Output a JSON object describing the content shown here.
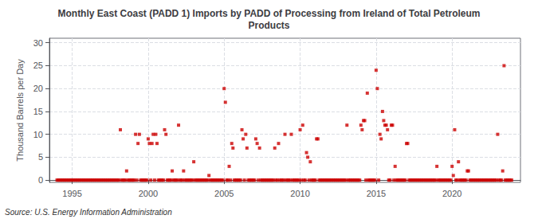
{
  "chart_data": {
    "type": "scatter",
    "title": "Monthly East Coast (PADD 1) Imports by PADD of Processing from Ireland of Total Petroleum\nProducts",
    "y_label": "Thousand Barrels per Day",
    "annotations": [
      "Source: U.S. Energy Information Administration"
    ],
    "color": "#cc0000",
    "marker": "square",
    "grid": true,
    "xlim": [
      1993.5,
      2024.5
    ],
    "ylim": [
      -0.5,
      31
    ],
    "xticks": [
      1995,
      2000,
      2005,
      2010,
      2015,
      2020
    ],
    "yticks": [
      0,
      5,
      10,
      15,
      20,
      25,
      30
    ],
    "x": [
      1994.0,
      1994.08,
      1994.17,
      1994.25,
      1994.33,
      1994.42,
      1994.5,
      1994.58,
      1994.67,
      1994.75,
      1994.83,
      1994.92,
      1995.0,
      1995.08,
      1995.17,
      1995.25,
      1995.33,
      1995.42,
      1995.5,
      1995.58,
      1995.67,
      1995.75,
      1995.83,
      1995.92,
      1996.0,
      1996.08,
      1996.17,
      1996.25,
      1996.33,
      1996.42,
      1996.5,
      1996.58,
      1996.67,
      1996.75,
      1996.83,
      1996.92,
      1997.0,
      1997.08,
      1997.17,
      1997.25,
      1997.33,
      1997.42,
      1997.5,
      1997.58,
      1997.67,
      1997.75,
      1997.83,
      1997.92,
      1998.0,
      1998.08,
      1998.17,
      1998.25,
      1998.33,
      1998.42,
      1998.5,
      1998.58,
      1998.67,
      1998.75,
      1998.83,
      1998.92,
      1999.0,
      1999.08,
      1999.17,
      1999.25,
      1999.33,
      1999.42,
      1999.5,
      1999.58,
      1999.67,
      1999.75,
      1999.83,
      1999.92,
      2000.0,
      2000.08,
      2000.17,
      2000.25,
      2000.33,
      2000.42,
      2000.5,
      2000.58,
      2000.67,
      2000.75,
      2000.83,
      2000.92,
      2001.0,
      2001.08,
      2001.17,
      2001.25,
      2001.33,
      2001.42,
      2001.5,
      2001.58,
      2001.67,
      2001.75,
      2001.83,
      2001.92,
      2002.0,
      2002.08,
      2002.17,
      2002.25,
      2002.33,
      2002.42,
      2002.5,
      2002.58,
      2002.67,
      2002.75,
      2002.83,
      2002.92,
      2003.0,
      2003.08,
      2003.17,
      2003.25,
      2003.33,
      2003.42,
      2003.5,
      2003.58,
      2003.67,
      2003.75,
      2003.83,
      2003.92,
      2004.0,
      2004.08,
      2004.17,
      2004.25,
      2004.33,
      2004.42,
      2004.5,
      2004.58,
      2004.67,
      2004.75,
      2004.83,
      2004.92,
      2005.0,
      2005.08,
      2005.17,
      2005.25,
      2005.33,
      2005.42,
      2005.5,
      2005.58,
      2005.67,
      2005.75,
      2005.83,
      2005.92,
      2006.0,
      2006.08,
      2006.17,
      2006.25,
      2006.33,
      2006.42,
      2006.5,
      2006.58,
      2006.67,
      2006.75,
      2006.83,
      2006.92,
      2007.0,
      2007.08,
      2007.17,
      2007.25,
      2007.33,
      2007.42,
      2007.5,
      2007.58,
      2007.67,
      2007.75,
      2007.83,
      2007.92,
      2008.0,
      2008.08,
      2008.17,
      2008.25,
      2008.33,
      2008.42,
      2008.5,
      2008.58,
      2008.67,
      2008.75,
      2008.83,
      2008.92,
      2009.0,
      2009.08,
      2009.17,
      2009.25,
      2009.33,
      2009.42,
      2009.5,
      2009.58,
      2009.67,
      2009.75,
      2009.83,
      2009.92,
      2010.0,
      2010.08,
      2010.17,
      2010.25,
      2010.33,
      2010.42,
      2010.5,
      2010.58,
      2010.67,
      2010.75,
      2010.83,
      2010.92,
      2011.0,
      2011.08,
      2011.17,
      2011.25,
      2011.33,
      2011.42,
      2011.5,
      2011.58,
      2011.67,
      2011.75,
      2011.83,
      2011.92,
      2012.0,
      2012.08,
      2012.17,
      2012.25,
      2012.33,
      2012.42,
      2012.5,
      2012.58,
      2012.67,
      2012.75,
      2012.83,
      2012.92,
      2013.0,
      2013.08,
      2013.17,
      2013.25,
      2013.33,
      2013.42,
      2013.5,
      2013.58,
      2013.67,
      2013.75,
      2013.83,
      2013.92,
      2014.0,
      2014.08,
      2014.17,
      2014.25,
      2014.33,
      2014.42,
      2014.5,
      2014.58,
      2014.67,
      2014.75,
      2014.83,
      2014.92,
      2015.0,
      2015.08,
      2015.17,
      2015.25,
      2015.33,
      2015.42,
      2015.5,
      2015.58,
      2015.67,
      2015.75,
      2015.83,
      2015.92,
      2016.0,
      2016.08,
      2016.17,
      2016.25,
      2016.33,
      2016.42,
      2016.5,
      2016.58,
      2016.67,
      2016.75,
      2016.83,
      2016.92,
      2017.0,
      2017.08,
      2017.17,
      2017.25,
      2017.33,
      2017.42,
      2017.5,
      2017.58,
      2017.67,
      2017.75,
      2017.83,
      2017.92,
      2018.0,
      2018.08,
      2018.17,
      2018.25,
      2018.33,
      2018.42,
      2018.5,
      2018.58,
      2018.67,
      2018.75,
      2018.83,
      2018.92,
      2019.0,
      2019.08,
      2019.17,
      2019.25,
      2019.33,
      2019.42,
      2019.5,
      2019.58,
      2019.67,
      2019.75,
      2019.83,
      2019.92,
      2020.0,
      2020.08,
      2020.17,
      2020.25,
      2020.33,
      2020.42,
      2020.5,
      2020.58,
      2020.67,
      2020.75,
      2020.83,
      2020.92,
      2021.0,
      2021.08,
      2021.17,
      2021.25,
      2021.33,
      2021.42,
      2021.5,
      2021.58,
      2021.67,
      2021.75,
      2021.83,
      2021.92,
      2022.0,
      2022.08,
      2022.17,
      2022.25,
      2022.33,
      2022.42,
      2022.5,
      2022.58,
      2022.67,
      2022.75,
      2022.83,
      2022.92,
      2023.0,
      2023.08,
      2023.17,
      2023.25,
      2023.33,
      2023.42,
      2023.5,
      2023.58,
      2023.67,
      2023.75,
      2023.83,
      2023.92
    ],
    "values": [
      0,
      0,
      0,
      0,
      0,
      0,
      0,
      0,
      0,
      0,
      0,
      0,
      0,
      0,
      0,
      0,
      0,
      0,
      0,
      0,
      0,
      0,
      0,
      0,
      0,
      0,
      0,
      0,
      0,
      0,
      0,
      0,
      0,
      0,
      0,
      0,
      0,
      0,
      0,
      0,
      0,
      0,
      0,
      0,
      0,
      0,
      0,
      0,
      0,
      0,
      11,
      0,
      0,
      0,
      0,
      2,
      0,
      0,
      0,
      0,
      0,
      0,
      10,
      0,
      8,
      10,
      0,
      0,
      0,
      0,
      0,
      0,
      9,
      8,
      0,
      8,
      10,
      0,
      10,
      8,
      0,
      0,
      0,
      0,
      0,
      11,
      10,
      0,
      0,
      0,
      0,
      2,
      0,
      0,
      0,
      0,
      12,
      0,
      0,
      0,
      2,
      0,
      0,
      0,
      0,
      0,
      0,
      0,
      4,
      0,
      0,
      0,
      0,
      0,
      0,
      0,
      0,
      0,
      0,
      0,
      1,
      0,
      0,
      0,
      0,
      0,
      0,
      0,
      0,
      0,
      0,
      0,
      20,
      17,
      0,
      0,
      3,
      0,
      8,
      7,
      0,
      0,
      0,
      0,
      0,
      0,
      11,
      9,
      0,
      10,
      7,
      0,
      0,
      0,
      0,
      0,
      0,
      9,
      8,
      0,
      7,
      0,
      0,
      0,
      0,
      0,
      0,
      0,
      0,
      0,
      0,
      0,
      7,
      0,
      0,
      8,
      0,
      0,
      0,
      0,
      10,
      0,
      0,
      0,
      0,
      10,
      0,
      0,
      0,
      0,
      0,
      0,
      11,
      0,
      12,
      0,
      0,
      6,
      5,
      0,
      4,
      0,
      0,
      0,
      0,
      9,
      9,
      0,
      0,
      0,
      0,
      0,
      0,
      0,
      0,
      0,
      0,
      0,
      0,
      0,
      0,
      0,
      0,
      0,
      0,
      0,
      0,
      0,
      0,
      12,
      0,
      0,
      0,
      0,
      0,
      0,
      0,
      0,
      0,
      0,
      12,
      11,
      13,
      13,
      0,
      19,
      0,
      0,
      0,
      0,
      0,
      0,
      24,
      20,
      0,
      10,
      9,
      15,
      13,
      12,
      12,
      11,
      0,
      0,
      12,
      12,
      0,
      3,
      0,
      0,
      0,
      0,
      0,
      0,
      0,
      0,
      8,
      8,
      0,
      0,
      0,
      0,
      0,
      0,
      0,
      0,
      0,
      0,
      0,
      0,
      0,
      0,
      0,
      0,
      0,
      0,
      0,
      0,
      0,
      0,
      3,
      0,
      0,
      0,
      0,
      0,
      0,
      0,
      0,
      0,
      0,
      0,
      3,
      1,
      11,
      0,
      0,
      4,
      0,
      0,
      0,
      0,
      0,
      0,
      2,
      2,
      0,
      0,
      0,
      0,
      0,
      0,
      0,
      0,
      0,
      0,
      0,
      0,
      0,
      0,
      0,
      0,
      0,
      0,
      0,
      0,
      0,
      0,
      10,
      0,
      0,
      0,
      2,
      25,
      0,
      0,
      0,
      0,
      0,
      0
    ]
  }
}
